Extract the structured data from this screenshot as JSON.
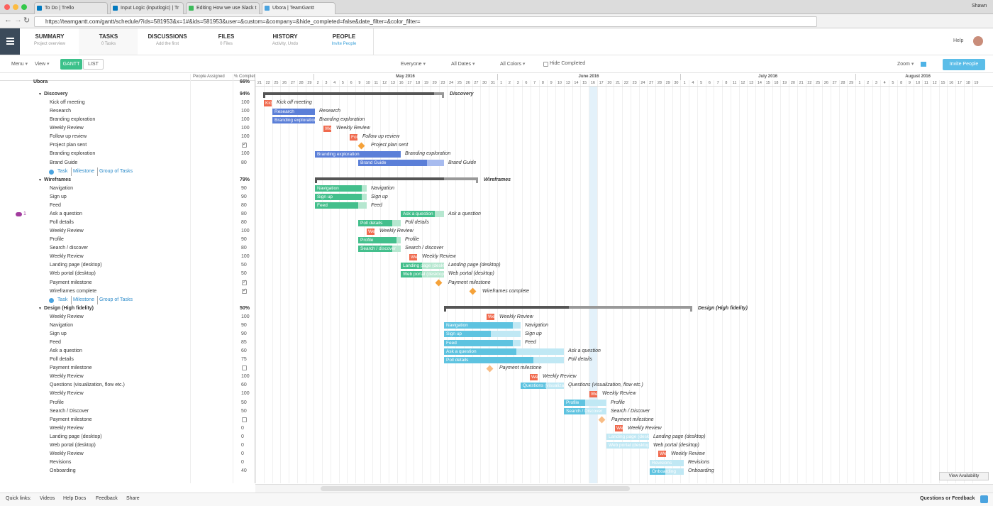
{
  "browser": {
    "tabs": [
      "To Do | Trello",
      "Input Logic (inputlogic) | Tr",
      "Editing How we use Slack t",
      "Ubora | TeamGantt"
    ],
    "user": "Shawn",
    "url": "https://teamgantt.com/gantt/schedule/?ids=581953&x=1#&ids=581953&user=&custom=&company=&hide_completed=false&date_filter=&color_filter="
  },
  "nav": {
    "tabs": [
      {
        "title": "SUMMARY",
        "subtitle": "Project overview"
      },
      {
        "title": "TASKS",
        "subtitle": "0 Tasks"
      },
      {
        "title": "DISCUSSIONS",
        "subtitle": "Add the first"
      },
      {
        "title": "FILES",
        "subtitle": "0 Files"
      },
      {
        "title": "HISTORY",
        "subtitle": "Activity, Undo"
      },
      {
        "title": "PEOPLE",
        "subtitle": "Invite People"
      }
    ],
    "help": "Help"
  },
  "toolbar": {
    "menu": "Menu",
    "view": "View",
    "gantt": "GANTT",
    "list": "LIST",
    "everyone": "Everyone",
    "dates": "All Dates",
    "colors": "All Colors",
    "hide_completed": "Hide Completed",
    "zoom": "Zoom",
    "invite": "Invite People"
  },
  "grid": {
    "columns": [
      "People Assigned",
      "% Complete"
    ],
    "project": {
      "name": "Ubora",
      "percent": "66%"
    },
    "rows": [
      {
        "type": "group",
        "name": "Discovery",
        "percent": "94%"
      },
      {
        "type": "task",
        "name": "Kick off meeting",
        "percent": 100
      },
      {
        "type": "task",
        "name": "Research",
        "percent": 100
      },
      {
        "type": "task",
        "name": "Branding exploration",
        "percent": 100
      },
      {
        "type": "task",
        "name": "Weekly Review",
        "percent": 100
      },
      {
        "type": "task",
        "name": "Follow up review",
        "percent": 100
      },
      {
        "type": "milestone",
        "name": "Project plan sent",
        "done": true
      },
      {
        "type": "task",
        "name": "Branding exploration",
        "percent": 100
      },
      {
        "type": "task",
        "name": "Brand Guide",
        "percent": 80
      },
      {
        "type": "add",
        "links": [
          "Task",
          "Milestone",
          "Group of Tasks"
        ]
      },
      {
        "type": "group",
        "name": "Wireframes",
        "percent": "79%"
      },
      {
        "type": "task",
        "name": "Navigation",
        "percent": 90
      },
      {
        "type": "task",
        "name": "Sign up",
        "percent": 90
      },
      {
        "type": "task",
        "name": "Feed",
        "percent": 80
      },
      {
        "type": "task",
        "name": "Ask a question",
        "percent": 80,
        "comments": 1
      },
      {
        "type": "task",
        "name": "Poll details",
        "percent": 80
      },
      {
        "type": "task",
        "name": "Weekly Review",
        "percent": 100
      },
      {
        "type": "task",
        "name": "Profile",
        "percent": 90
      },
      {
        "type": "task",
        "name": "Search / discover",
        "percent": 80
      },
      {
        "type": "task",
        "name": "Weekly Review",
        "percent": 100
      },
      {
        "type": "task",
        "name": "Landing page (desktop)",
        "percent": 50
      },
      {
        "type": "task",
        "name": "Web portal (desktop)",
        "percent": 50
      },
      {
        "type": "milestone",
        "name": "Payment milestone",
        "done": true
      },
      {
        "type": "milestone",
        "name": "Wireframes complete",
        "done": true
      },
      {
        "type": "add",
        "links": [
          "Task",
          "Milestone",
          "Group of Tasks"
        ]
      },
      {
        "type": "group",
        "name": "Design (High fidelity)",
        "percent": "50%"
      },
      {
        "type": "task",
        "name": "Weekly Review",
        "percent": 100
      },
      {
        "type": "task",
        "name": "Navigation",
        "percent": 90
      },
      {
        "type": "task",
        "name": "Sign up",
        "percent": 90
      },
      {
        "type": "task",
        "name": "Feed",
        "percent": 85
      },
      {
        "type": "task",
        "name": "Ask a question",
        "percent": 60
      },
      {
        "type": "task",
        "name": "Poll details",
        "percent": 75
      },
      {
        "type": "milestone",
        "name": "Payment milestone",
        "done": false
      },
      {
        "type": "task",
        "name": "Weekly Review",
        "percent": 100
      },
      {
        "type": "task",
        "name": "Questions (visualization, flow etc.)",
        "percent": 60
      },
      {
        "type": "task",
        "name": "Weekly Review",
        "percent": 100
      },
      {
        "type": "task",
        "name": "Profile",
        "percent": 50
      },
      {
        "type": "task",
        "name": "Search / Discover",
        "percent": 50
      },
      {
        "type": "milestone",
        "name": "Payment milestone",
        "done": false
      },
      {
        "type": "task",
        "name": "Weekly Review",
        "percent": 0
      },
      {
        "type": "task",
        "name": "Landing page (desktop)",
        "percent": 0
      },
      {
        "type": "task",
        "name": "Web portal (desktop)",
        "percent": 0
      },
      {
        "type": "task",
        "name": "Weekly Review",
        "percent": 0
      },
      {
        "type": "task",
        "name": "Revisions",
        "percent": 0
      },
      {
        "type": "task",
        "name": "Onboarding",
        "percent": 40
      }
    ]
  },
  "timeline": {
    "months": [
      {
        "days": [
          21,
          22,
          25,
          26,
          27,
          28,
          29
        ]
      },
      {
        "name": "May 2016",
        "days": [
          2,
          3,
          4,
          5,
          6,
          9,
          10,
          11,
          12,
          13,
          16,
          17,
          18,
          19,
          20,
          23,
          24,
          25,
          26,
          27,
          30,
          31
        ]
      },
      {
        "name": "June 2016",
        "days": [
          1,
          2,
          3,
          6,
          7,
          8,
          9,
          10,
          13,
          14,
          15,
          16,
          17,
          20,
          21,
          22,
          23,
          24,
          27,
          28,
          29,
          30
        ]
      },
      {
        "name": "July 2016",
        "days": [
          1,
          4,
          5,
          6,
          7,
          8,
          11,
          12,
          13,
          14,
          15,
          18,
          19,
          20,
          21,
          22,
          25,
          26,
          27,
          28,
          29
        ]
      },
      {
        "name": "August 2016",
        "days": [
          1,
          2,
          3,
          4,
          5,
          8,
          9,
          10,
          11,
          12,
          15,
          16,
          17,
          18,
          19
        ]
      }
    ]
  },
  "footer": {
    "label": "Quick links:",
    "links": [
      "Videos",
      "Help Docs",
      "Feedback",
      "Share"
    ],
    "feedback": "Questions or Feedback",
    "availability": "View Availability"
  }
}
